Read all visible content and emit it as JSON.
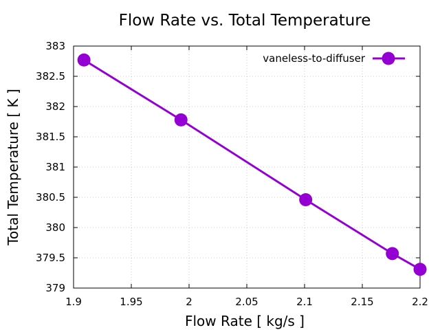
{
  "chart_data": {
    "type": "line",
    "title": "Flow Rate vs. Total Temperature",
    "xlabel": "Flow Rate [ kg/s ]",
    "ylabel": "Total Temperature [ K ]",
    "xlim": [
      1.9,
      2.2
    ],
    "ylim": [
      379,
      383
    ],
    "xticks": [
      "1.9",
      "1.95",
      "2",
      "2.05",
      "2.1",
      "2.15",
      "2.2"
    ],
    "yticks": [
      "379",
      "379.5",
      "380",
      "380.5",
      "381",
      "381.5",
      "382",
      "382.5",
      "383"
    ],
    "grid": true,
    "legend_position": "top-right",
    "series": [
      {
        "name": "vaneless-to-diffuser",
        "color": "#9400d3",
        "marker": "circle",
        "x": [
          1.909,
          1.993,
          2.101,
          2.176,
          2.2
        ],
        "y": [
          382.77,
          381.78,
          380.46,
          379.57,
          379.31
        ]
      }
    ]
  }
}
